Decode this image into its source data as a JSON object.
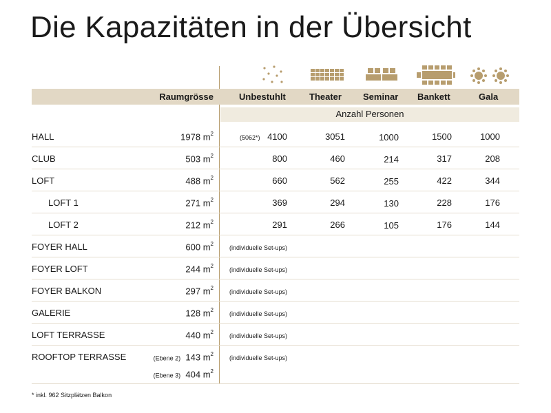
{
  "title": "Die Kapazitäten in der Übersicht",
  "colors": {
    "accent": "#b79d6e",
    "header_band": "#e2d8c5",
    "sub_band": "#f0ebdf"
  },
  "header": {
    "raumgroesse": "Raumgrösse",
    "columns": [
      "Unbestuhlt",
      "Theater",
      "Seminar",
      "Bankett",
      "Gala"
    ],
    "icons": [
      "scattered-dots-icon",
      "theater-seating-icon",
      "seminar-tables-icon",
      "banquet-table-icon",
      "gala-round-tables-icon"
    ]
  },
  "subheader": "Anzahl Personen",
  "unit_superscript": "2",
  "rows": [
    {
      "name": "HALL",
      "area": "1978 m",
      "note": "(5062*)",
      "values": [
        "4100",
        "3051",
        "1000",
        "1500",
        "1000"
      ]
    },
    {
      "name": "CLUB",
      "area": "503 m",
      "values": [
        "800",
        "460",
        "214",
        "317",
        "208"
      ]
    },
    {
      "name": "LOFT",
      "area": "488 m",
      "values": [
        "660",
        "562",
        "255",
        "422",
        "344"
      ]
    },
    {
      "name": "LOFT 1",
      "area": "271 m",
      "values": [
        "369",
        "294",
        "130",
        "228",
        "176"
      ]
    },
    {
      "name": "LOFT 2",
      "area": "212 m",
      "values": [
        "291",
        "266",
        "105",
        "176",
        "144"
      ]
    },
    {
      "name": "FOYER HALL",
      "area": "600 m",
      "setup": "(individuelle Set-ups)"
    },
    {
      "name": "FOYER LOFT",
      "area": "244 m",
      "setup": "(individuelle Set-ups)"
    },
    {
      "name": "FOYER BALKON",
      "area": "297 m",
      "setup": "(individuelle Set-ups)"
    },
    {
      "name": "GALERIE",
      "area": "128 m",
      "setup": "(individuelle Set-ups)"
    },
    {
      "name": "LOFT TERRASSE",
      "area": "440 m",
      "setup": "(individuelle Set-ups)"
    },
    {
      "name": "ROOFTOP TERRASSE",
      "setup": "(individuelle Set-ups)",
      "levels": [
        {
          "label": "(Ebene 2)",
          "area": "143 m"
        },
        {
          "label": "(Ebene 3)",
          "area": "404 m"
        }
      ]
    }
  ],
  "footnote": "* inkl. 962 Sitzplätzen Balkon"
}
